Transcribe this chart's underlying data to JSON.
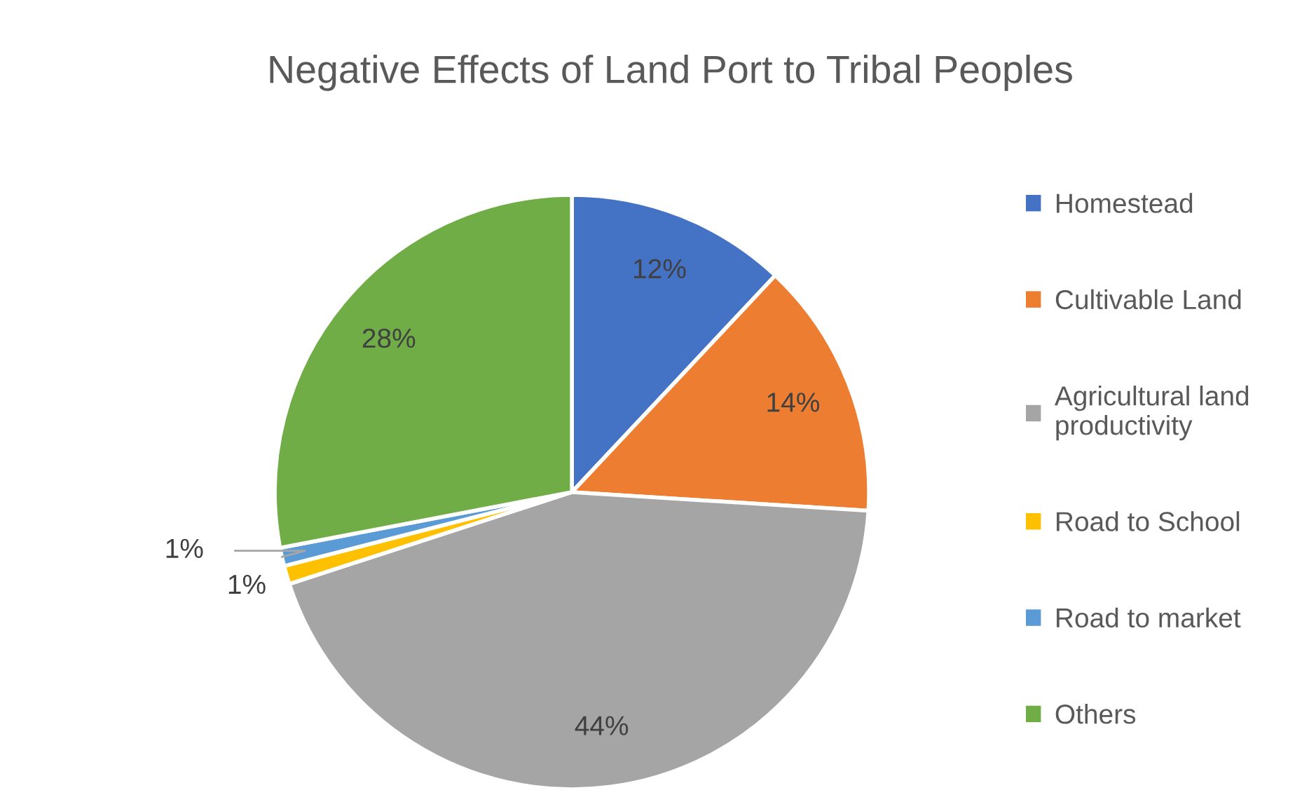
{
  "chart_data": {
    "type": "pie",
    "title": "Negative Effects of Land Port to Tribal Peoples",
    "categories": [
      "Homestead",
      "Cultivable Land",
      "Agricultural land productivity",
      "Road to School",
      "Road to market",
      "Others"
    ],
    "values": [
      12,
      14,
      44,
      1,
      1,
      28
    ],
    "colors": [
      "#4472c4",
      "#ed7d31",
      "#a5a5a5",
      "#ffc000",
      "#5b9bd5",
      "#70ad47"
    ],
    "value_labels": [
      "12%",
      "14%",
      "44%",
      "1%",
      "1%",
      "28%"
    ],
    "legend": "right"
  }
}
